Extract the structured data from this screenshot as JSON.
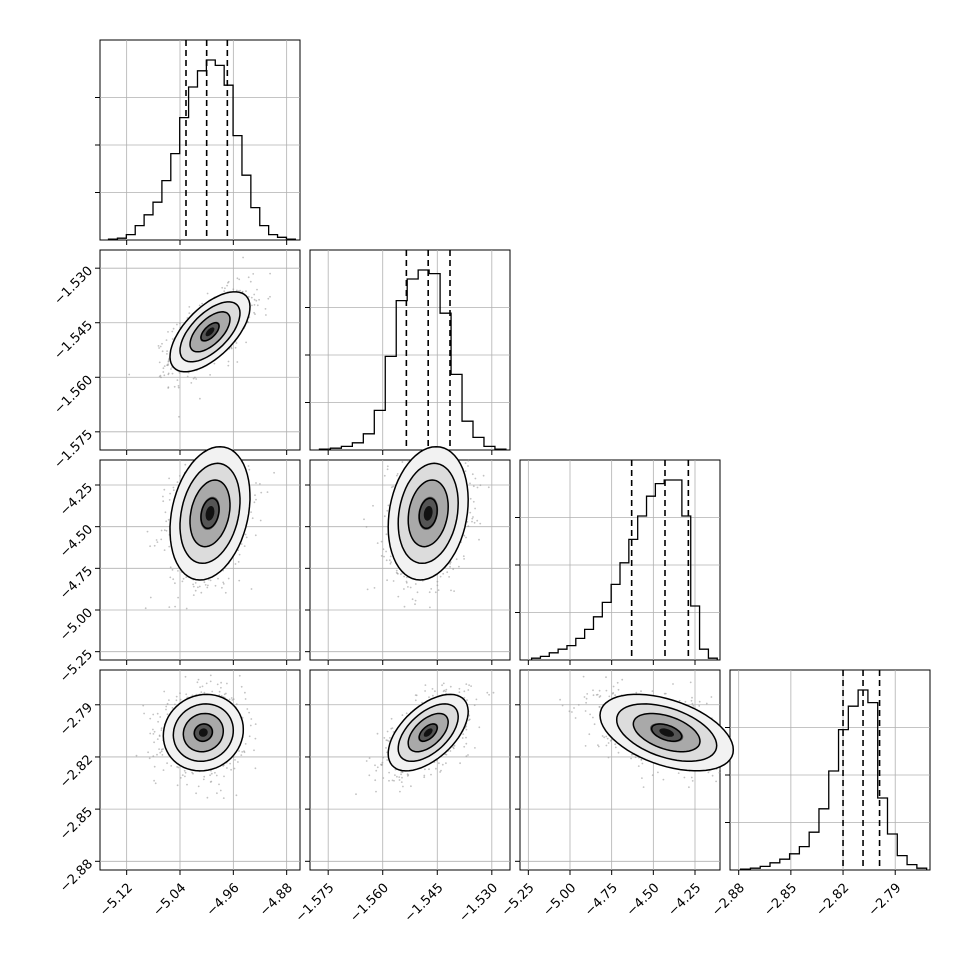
{
  "chart_data": {
    "type": "corner",
    "grid": true,
    "parameters": [
      {
        "ticks": [
          "−5.12",
          "−5.04",
          "−4.96",
          "−4.88"
        ],
        "tick_values": [
          -5.12,
          -5.04,
          -4.96,
          -4.88
        ],
        "range": [
          -5.16,
          -4.86
        ]
      },
      {
        "ticks": [
          "−1.575",
          "−1.560",
          "−1.545",
          "−1.530"
        ],
        "tick_values": [
          -1.575,
          -1.56,
          -1.545,
          -1.53
        ],
        "range": [
          -1.58,
          -1.525
        ]
      },
      {
        "ticks": [
          "−5.25",
          "−5.00",
          "−4.75",
          "−4.50",
          "−4.25"
        ],
        "tick_values": [
          -5.25,
          -5.0,
          -4.75,
          -4.5,
          -4.25
        ],
        "range": [
          -5.3,
          -4.1
        ]
      },
      {
        "ticks": [
          "−2.88",
          "−2.85",
          "−2.82",
          "−2.79"
        ],
        "tick_values": [
          -2.88,
          -2.85,
          -2.82,
          -2.79
        ],
        "range": [
          -2.885,
          -2.77
        ]
      }
    ],
    "histograms": [
      {
        "param": 0,
        "quantiles": [
          -5.031,
          -5.0,
          -4.969
        ],
        "counts": [
          0.005,
          0.01,
          0.03,
          0.08,
          0.14,
          0.21,
          0.33,
          0.48,
          0.68,
          0.85,
          0.94,
          1.0,
          0.97,
          0.86,
          0.58,
          0.36,
          0.18,
          0.08,
          0.03,
          0.015,
          0.005
        ]
      },
      {
        "param": 1,
        "quantiles": [
          -1.5535,
          -1.5475,
          -1.5415
        ],
        "counts": [
          0.005,
          0.01,
          0.02,
          0.04,
          0.09,
          0.22,
          0.52,
          0.83,
          0.95,
          1.0,
          0.98,
          0.76,
          0.42,
          0.16,
          0.07,
          0.02,
          0.005
        ]
      },
      {
        "param": 2,
        "quantiles": [
          -4.63,
          -4.43,
          -4.29
        ],
        "counts": [
          0.01,
          0.02,
          0.04,
          0.06,
          0.08,
          0.12,
          0.17,
          0.24,
          0.32,
          0.42,
          0.54,
          0.67,
          0.8,
          0.91,
          0.98,
          1.0,
          1.0,
          0.8,
          0.3,
          0.06,
          0.01
        ]
      },
      {
        "param": 3,
        "quantiles": [
          -2.82,
          -2.8085,
          -2.799
        ],
        "counts": [
          0.005,
          0.01,
          0.02,
          0.04,
          0.06,
          0.09,
          0.13,
          0.21,
          0.34,
          0.55,
          0.78,
          0.91,
          1.0,
          0.93,
          0.4,
          0.2,
          0.08,
          0.03,
          0.01
        ]
      }
    ],
    "pairs": [
      {
        "x": 0,
        "y": 1,
        "center": [
          -4.995,
          -1.5475
        ],
        "sigma": [
          0.03,
          0.0055
        ],
        "rho": 0.62
      },
      {
        "x": 0,
        "y": 2,
        "center": [
          -4.995,
          -4.42
        ],
        "sigma": [
          0.03,
          0.2
        ],
        "rho": 0.25
      },
      {
        "x": 1,
        "y": 2,
        "center": [
          -1.5475,
          -4.42
        ],
        "sigma": [
          0.0055,
          0.2
        ],
        "rho": 0.2
      },
      {
        "x": 0,
        "y": 3,
        "center": [
          -5.005,
          -2.806
        ],
        "sigma": [
          0.03,
          0.011
        ],
        "rho": 0.08
      },
      {
        "x": 1,
        "y": 3,
        "center": [
          -1.5475,
          -2.806
        ],
        "sigma": [
          0.0055,
          0.011
        ],
        "rho": 0.55
      },
      {
        "x": 2,
        "y": 3,
        "center": [
          -4.42,
          -2.806
        ],
        "sigma": [
          0.2,
          0.011
        ],
        "rho": -0.45
      }
    ]
  }
}
